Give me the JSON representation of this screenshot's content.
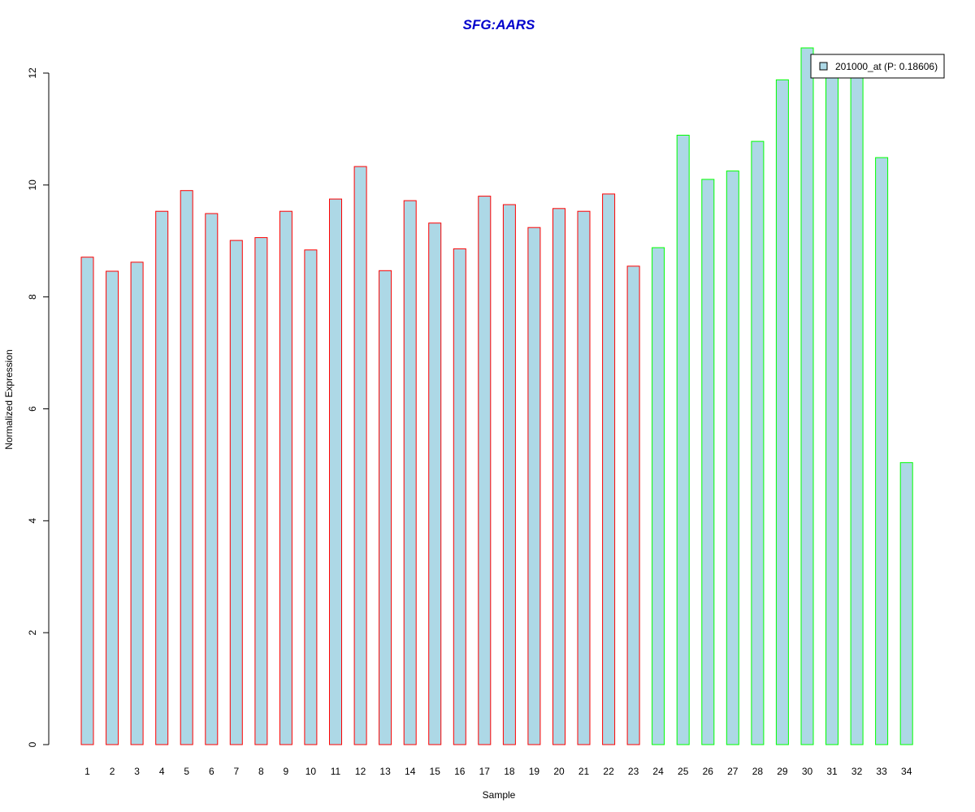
{
  "chart_data": {
    "type": "bar",
    "title": "SFG:AARS",
    "xlabel": "Sample",
    "ylabel": "Normalized Expression",
    "ylim": [
      0,
      12
    ],
    "yticks": [
      0,
      2,
      4,
      6,
      8,
      10,
      12
    ],
    "categories": [
      "1",
      "2",
      "3",
      "4",
      "5",
      "6",
      "7",
      "8",
      "9",
      "10",
      "11",
      "12",
      "13",
      "14",
      "15",
      "16",
      "17",
      "18",
      "19",
      "20",
      "21",
      "22",
      "23",
      "24",
      "25",
      "26",
      "27",
      "28",
      "29",
      "30",
      "31",
      "32",
      "33",
      "34"
    ],
    "values": [
      8.71,
      8.46,
      8.62,
      9.53,
      9.9,
      9.49,
      9.01,
      9.06,
      9.53,
      8.84,
      9.75,
      10.33,
      8.47,
      9.72,
      9.32,
      8.86,
      9.8,
      9.65,
      9.24,
      9.58,
      9.53,
      9.84,
      8.55,
      8.88,
      10.89,
      10.1,
      10.25,
      10.78,
      11.88,
      12.45,
      12.05,
      12.05,
      10.49,
      5.04
    ],
    "groups": [
      "red",
      "red",
      "red",
      "red",
      "red",
      "red",
      "red",
      "red",
      "red",
      "red",
      "red",
      "red",
      "red",
      "red",
      "red",
      "red",
      "red",
      "red",
      "red",
      "red",
      "red",
      "red",
      "red",
      "green",
      "green",
      "green",
      "green",
      "green",
      "green",
      "green",
      "green",
      "green",
      "green",
      "green"
    ],
    "colors": {
      "title": "#0000CC",
      "bar_fill": "#ADD8E6",
      "red": "#FF0000",
      "green": "#00FF00",
      "axis": "#000000"
    },
    "legend": {
      "position": "top-right",
      "label": "201000_at (P: 0.18606)"
    },
    "grid": false
  }
}
